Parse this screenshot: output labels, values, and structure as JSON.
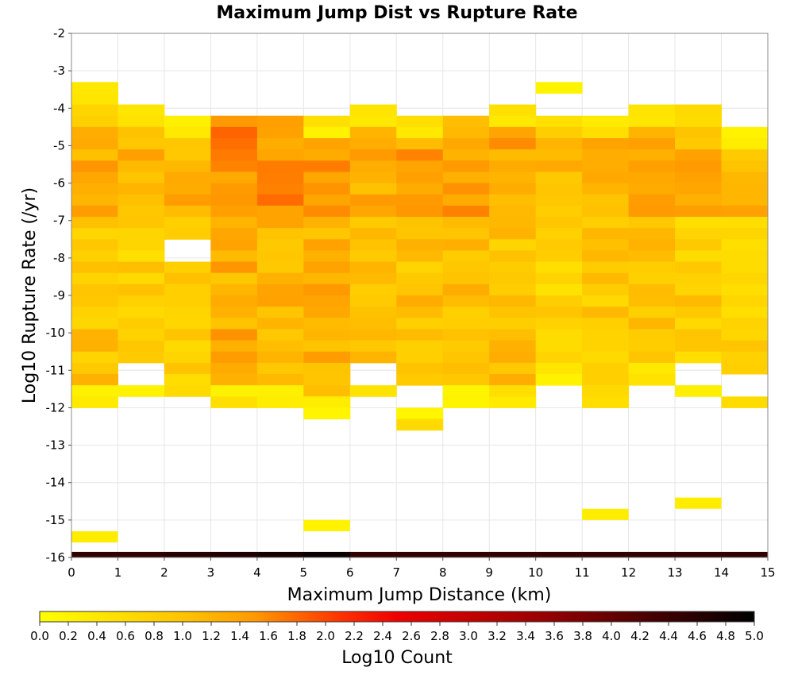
{
  "chart_data": {
    "type": "heatmap",
    "title": "Maximum Jump Dist vs Rupture Rate",
    "xlabel": "Maximum Jump Distance (km)",
    "ylabel": "Log10 Rupture Rate (/yr)",
    "colorbar_label": "Log10 Count",
    "xlim": [
      0,
      15
    ],
    "ylim": [
      -16,
      -2
    ],
    "x_ticks": [
      "0",
      "1",
      "2",
      "3",
      "4",
      "5",
      "6",
      "7",
      "8",
      "9",
      "10",
      "11",
      "12",
      "13",
      "14",
      "15"
    ],
    "y_ticks": [
      "-2",
      "-3",
      "-4",
      "-5",
      "-6",
      "-7",
      "-8",
      "-9",
      "-10",
      "-11",
      "-12",
      "-13",
      "-14",
      "-15",
      "-16"
    ],
    "colorbar_range": [
      0,
      5
    ],
    "colorbar_ticks": [
      "0.0",
      "0.2",
      "0.4",
      "0.6",
      "0.8",
      "1.0",
      "1.2",
      "1.4",
      "1.6",
      "1.8",
      "2.0",
      "2.2",
      "2.4",
      "2.6",
      "2.8",
      "3.0",
      "3.2",
      "3.4",
      "3.6",
      "3.8",
      "4.0",
      "4.2",
      "4.4",
      "4.6",
      "4.8",
      "5.0"
    ],
    "colormap": [
      "#ffff00",
      "#ffa500",
      "#ff0000",
      "#000000"
    ],
    "grid": true,
    "x_bin_width": 1,
    "y_bin_height": 0.3,
    "columns": [
      {
        "x": 0,
        "y_top": -3.3,
        "y_bottom": -11.9,
        "sparse": [
          {
            "y": -15.45,
            "v": 0.3
          }
        ],
        "gaps": [],
        "intensity": 0.95
      },
      {
        "x": 1,
        "y_top": -3.9,
        "y_bottom": -11.5,
        "sparse": [],
        "gaps": [
          -11.1
        ],
        "intensity": 0.8
      },
      {
        "x": 2,
        "y_top": -4.2,
        "y_bottom": -11.5,
        "sparse": [],
        "gaps": [
          -7.8
        ],
        "intensity": 0.85
      },
      {
        "x": 3,
        "y_top": -3.6,
        "y_bottom": -11.9,
        "sparse": [],
        "gaps": [
          -3.9
        ],
        "intensity": 1.25
      },
      {
        "x": 4,
        "y_top": -3.6,
        "y_bottom": -11.9,
        "sparse": [],
        "gaps": [
          -3.9
        ],
        "intensity": 1.2
      },
      {
        "x": 5,
        "y_top": -4.2,
        "y_bottom": -12.2,
        "sparse": [
          {
            "y": -15.15,
            "v": 0.2
          }
        ],
        "gaps": [],
        "intensity": 1.25
      },
      {
        "x": 6,
        "y_top": -3.9,
        "y_bottom": -11.5,
        "sparse": [],
        "gaps": [
          -11.1
        ],
        "intensity": 0.9
      },
      {
        "x": 7,
        "y_top": -4.2,
        "y_bottom": -12.5,
        "sparse": [],
        "gaps": [
          -11.7
        ],
        "intensity": 1.0
      },
      {
        "x": 8,
        "y_top": -3.6,
        "y_bottom": -11.9,
        "sparse": [],
        "gaps": [
          -3.9
        ],
        "intensity": 1.05
      },
      {
        "x": 9,
        "y_top": -3.9,
        "y_bottom": -11.9,
        "sparse": [],
        "gaps": [],
        "intensity": 1.0
      },
      {
        "x": 10,
        "y_top": -3.3,
        "y_bottom": -11.3,
        "sparse": [],
        "gaps": [
          -3.9
        ],
        "intensity": 0.7
      },
      {
        "x": 11,
        "y_top": -4.2,
        "y_bottom": -11.9,
        "sparse": [
          {
            "y": -14.85,
            "v": 0.3
          }
        ],
        "gaps": [],
        "intensity": 0.9
      },
      {
        "x": 12,
        "y_top": -3.9,
        "y_bottom": -11.3,
        "sparse": [],
        "gaps": [],
        "intensity": 1.1
      },
      {
        "x": 13,
        "y_top": -3.9,
        "y_bottom": -11.5,
        "sparse": [
          {
            "y": -14.55,
            "v": 0.3
          }
        ],
        "gaps": [
          -11.1
        ],
        "intensity": 0.85
      },
      {
        "x": 14,
        "y_top": -4.5,
        "y_bottom": -11.9,
        "sparse": [],
        "gaps": [
          -11.4
        ],
        "intensity": 0.8
      }
    ],
    "bottom_row": {
      "y_center": -15.93,
      "values": [
        4.5,
        4.5,
        4.6,
        4.7,
        4.8,
        4.9,
        4.5,
        4.5,
        4.5,
        4.5,
        4.5,
        4.5,
        4.5,
        4.5,
        4.5
      ]
    }
  }
}
